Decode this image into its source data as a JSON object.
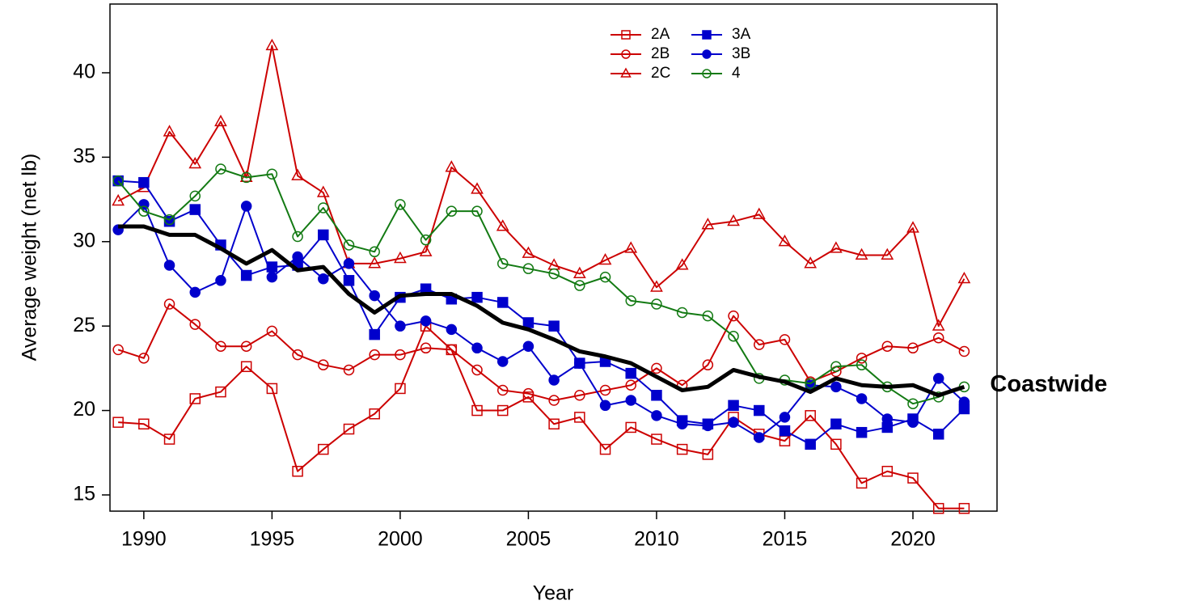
{
  "chart_data": {
    "type": "line",
    "x_label": "Year",
    "y_label": "Average weight (net lb)",
    "x": [
      1989,
      1990,
      1991,
      1992,
      1993,
      1994,
      1995,
      1996,
      1997,
      1998,
      1999,
      2000,
      2001,
      2002,
      2003,
      2004,
      2005,
      2006,
      2007,
      2008,
      2009,
      2010,
      2011,
      2012,
      2013,
      2014,
      2015,
      2016,
      2017,
      2018,
      2019,
      2020,
      2021,
      2022
    ],
    "xlim": [
      1988.68,
      2023.28
    ],
    "xticks": [
      1990,
      1995,
      2000,
      2005,
      2010,
      2015,
      2020
    ],
    "ylim": [
      14.04,
      44.07
    ],
    "yticks": [
      15,
      20,
      25,
      30,
      35,
      40
    ],
    "legend": "top",
    "series": [
      {
        "name": "2A",
        "color": "#cc0000",
        "marker": "square-open",
        "values": [
          19.3,
          19.2,
          18.3,
          20.7,
          21.1,
          22.6,
          21.3,
          16.4,
          17.7,
          18.9,
          19.8,
          21.3,
          25.0,
          23.6,
          20.0,
          20.0,
          20.8,
          19.2,
          19.6,
          17.7,
          19.0,
          18.3,
          17.7,
          17.4,
          19.6,
          18.6,
          18.2,
          19.7,
          18.0,
          15.7,
          16.4,
          16.0,
          14.2,
          14.2
        ]
      },
      {
        "name": "2B",
        "color": "#cc0000",
        "marker": "circle-open",
        "values": [
          23.6,
          23.1,
          26.3,
          25.1,
          23.8,
          23.8,
          24.7,
          23.3,
          22.7,
          22.4,
          23.3,
          23.3,
          23.7,
          23.6,
          22.4,
          21.2,
          21.0,
          20.6,
          20.9,
          21.2,
          21.5,
          22.5,
          21.5,
          22.7,
          25.6,
          23.9,
          24.2,
          21.7,
          22.3,
          23.1,
          23.8,
          23.7,
          24.3,
          23.5
        ]
      },
      {
        "name": "2C",
        "color": "#cc0000",
        "marker": "triangle-open",
        "values": [
          32.4,
          33.2,
          36.5,
          34.6,
          37.1,
          33.8,
          41.6,
          33.9,
          32.9,
          28.7,
          28.7,
          29.0,
          29.4,
          34.4,
          33.1,
          30.9,
          29.3,
          28.6,
          28.1,
          28.9,
          29.6,
          27.3,
          28.6,
          31.0,
          31.2,
          31.6,
          30.0,
          28.7,
          29.6,
          29.2,
          29.2,
          30.8,
          25.0,
          27.8
        ]
      },
      {
        "name": "3A",
        "color": "#0000cc",
        "marker": "square-filled",
        "values": [
          33.6,
          33.5,
          31.2,
          31.9,
          29.8,
          28.0,
          28.5,
          28.6,
          30.4,
          27.7,
          24.5,
          26.7,
          27.2,
          26.6,
          26.7,
          26.4,
          25.2,
          25.0,
          22.8,
          22.9,
          22.2,
          20.9,
          19.4,
          19.2,
          20.3,
          20.0,
          18.8,
          18.0,
          19.2,
          18.7,
          19.0,
          19.5,
          18.6,
          20.1
        ]
      },
      {
        "name": "3B",
        "color": "#0000cc",
        "marker": "circle-filled",
        "values": [
          30.7,
          32.2,
          28.6,
          27.0,
          27.7,
          32.1,
          27.9,
          29.1,
          27.8,
          28.7,
          26.8,
          25.0,
          25.3,
          24.8,
          23.7,
          22.9,
          23.8,
          21.8,
          22.8,
          20.3,
          20.6,
          19.7,
          19.2,
          19.1,
          19.3,
          18.4,
          19.6,
          21.5,
          21.4,
          20.7,
          19.5,
          19.3,
          21.9,
          20.5
        ]
      },
      {
        "name": "4",
        "color": "#137a13",
        "marker": "circle-open",
        "values": [
          33.6,
          31.8,
          31.3,
          32.7,
          34.3,
          33.8,
          34.0,
          30.3,
          32.0,
          29.8,
          29.4,
          32.2,
          30.1,
          31.8,
          31.8,
          28.7,
          28.4,
          28.1,
          27.4,
          27.9,
          26.5,
          26.3,
          25.8,
          25.6,
          24.4,
          21.9,
          21.8,
          21.6,
          22.6,
          22.7,
          21.4,
          20.4,
          20.8,
          21.4
        ]
      },
      {
        "name": "Coastwide",
        "color": "#000000",
        "marker": "none",
        "direct_label": true,
        "values": [
          30.9,
          30.9,
          30.4,
          30.4,
          29.6,
          28.7,
          29.5,
          28.3,
          28.5,
          26.9,
          25.8,
          26.8,
          26.9,
          26.9,
          26.2,
          25.2,
          24.8,
          24.2,
          23.5,
          23.2,
          22.8,
          22.0,
          21.2,
          21.4,
          22.4,
          22.0,
          21.7,
          21.1,
          21.9,
          21.5,
          21.4,
          21.5,
          20.9,
          21.4
        ]
      }
    ]
  }
}
